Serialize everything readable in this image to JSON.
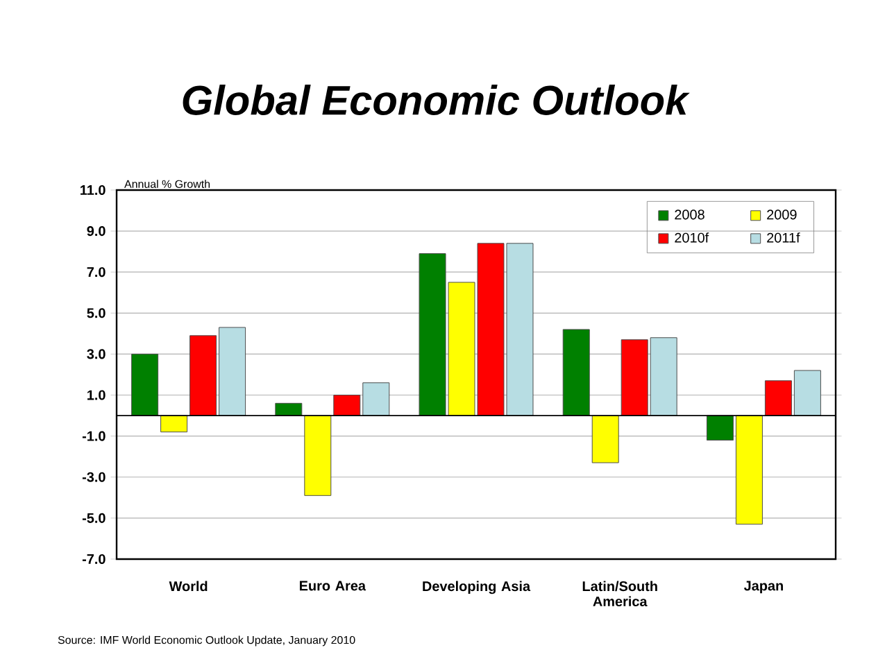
{
  "chart_data": {
    "type": "bar",
    "title": "Global Economic Outlook",
    "ylabel": "Annual % Growth",
    "categories": [
      "World",
      "Euro Area",
      "Developing Asia",
      "Latin/South America",
      "Japan"
    ],
    "series": [
      {
        "name": "2008",
        "color": "#008000",
        "values": [
          3.0,
          0.6,
          7.9,
          4.2,
          -1.2
        ]
      },
      {
        "name": "2009",
        "color": "#ffff00",
        "values": [
          -0.8,
          -3.9,
          6.5,
          -2.3,
          -5.3
        ]
      },
      {
        "name": "2010f",
        "color": "#ff0000",
        "values": [
          3.9,
          1.0,
          8.4,
          3.7,
          1.7
        ]
      },
      {
        "name": "2011f",
        "color": "#b7dde3",
        "values": [
          4.3,
          1.6,
          8.4,
          3.8,
          2.2
        ]
      }
    ],
    "ylim": [
      -7,
      11
    ],
    "yticks": [
      {
        "value": 11,
        "label": "11.0"
      },
      {
        "value": 9,
        "label": "9.0"
      },
      {
        "value": 7,
        "label": "7.0"
      },
      {
        "value": 5,
        "label": "5.0"
      },
      {
        "value": 3,
        "label": "3.0"
      },
      {
        "value": 1,
        "label": "1.0"
      },
      {
        "value": -1,
        "label": "-1.0"
      },
      {
        "value": -3,
        "label": "-3.0"
      },
      {
        "value": -5,
        "label": "-5.0"
      },
      {
        "value": -7,
        "label": "-7.0"
      }
    ],
    "grid": "y",
    "legend": "top right",
    "annotations": [
      "Source:  IMF World Economic Outlook Update, January 2010"
    ]
  }
}
